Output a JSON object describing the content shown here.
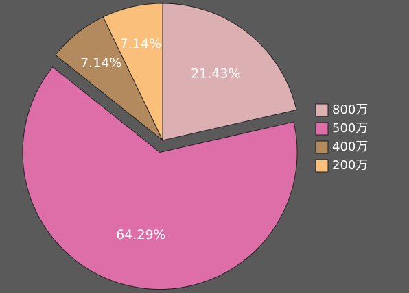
{
  "chart_data": {
    "type": "pie",
    "categories": [
      "800万",
      "500万",
      "400万",
      "200万"
    ],
    "values": [
      21.43,
      64.29,
      7.14,
      7.14
    ],
    "value_labels": [
      "21.43%",
      "64.29%",
      "7.14%",
      "7.14%"
    ],
    "colors": [
      "#dcafb2",
      "#dd6ea8",
      "#b38a5e",
      "#fbbf7c"
    ],
    "exploded": [
      false,
      true,
      false,
      false
    ],
    "legend": "right"
  }
}
